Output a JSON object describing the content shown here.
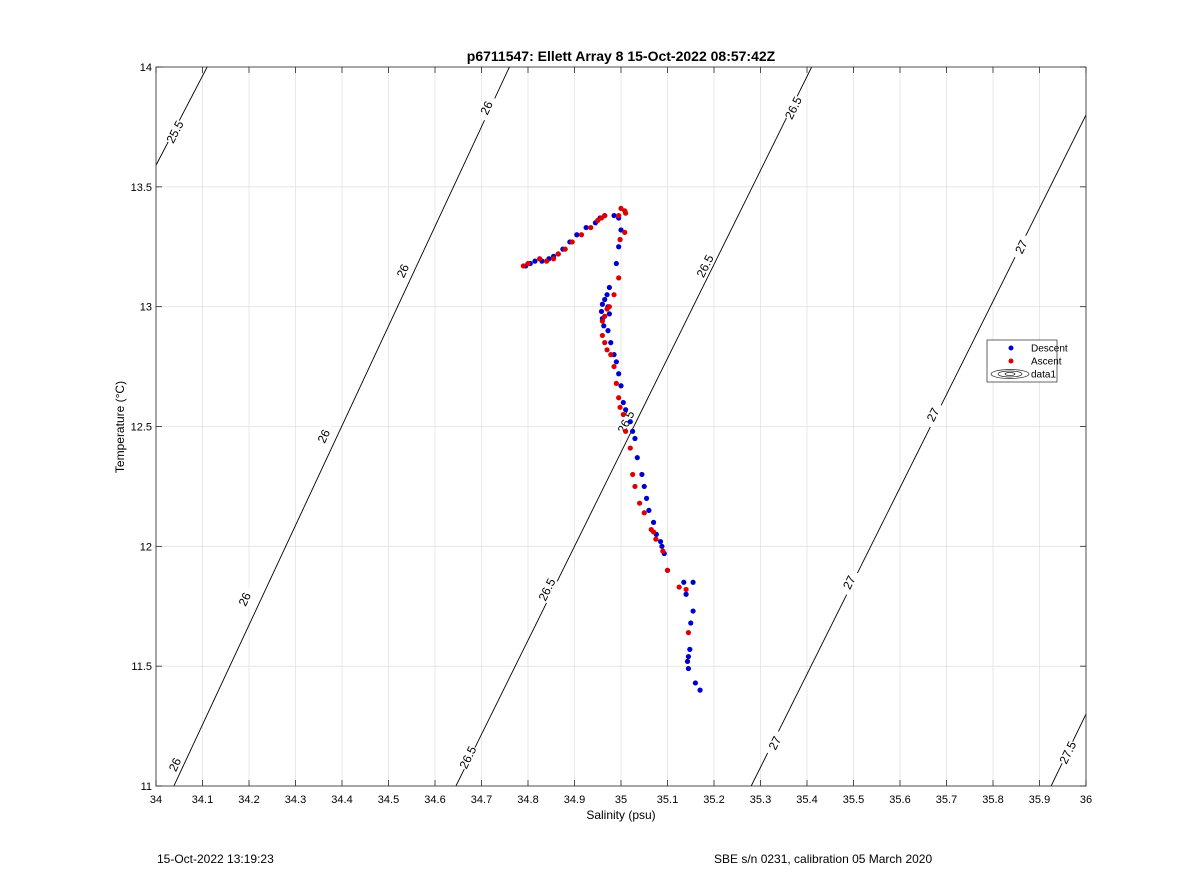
{
  "chart_data": {
    "type": "scatter",
    "title": "p6711547: Ellett Array 8 15-Oct-2022 08:57:42Z",
    "xlabel": "Salinity (psu)",
    "ylabel": "Temperature (°C)",
    "xlim": [
      34,
      36
    ],
    "ylim": [
      11,
      14
    ],
    "xticks": [
      34,
      34.1,
      34.2,
      34.3,
      34.4,
      34.5,
      34.6,
      34.7,
      34.8,
      34.9,
      35,
      35.1,
      35.2,
      35.3,
      35.4,
      35.5,
      35.6,
      35.7,
      35.8,
      35.9,
      36
    ],
    "xtick_labels": [
      "34",
      "34.1",
      "34.2",
      "34.3",
      "34.4",
      "34.5",
      "34.6",
      "34.7",
      "34.8",
      "34.9",
      "35",
      "35.1",
      "35.2",
      "35.3",
      "35.4",
      "35.5",
      "35.6",
      "35.7",
      "35.8",
      "35.9",
      "36"
    ],
    "yticks": [
      11,
      11.5,
      12,
      12.5,
      13,
      13.5,
      14
    ],
    "ytick_labels": [
      "11",
      "11.5",
      "12",
      "12.5",
      "13",
      "13.5",
      "14"
    ],
    "grid": true,
    "legend": {
      "placement": "right",
      "entries": [
        {
          "label": "Descent",
          "color": "#0000cc",
          "marker": "dot"
        },
        {
          "label": "Ascent",
          "color": "#dd0000",
          "marker": "dot"
        },
        {
          "label": "data1",
          "color": "#000000",
          "marker": "contour"
        }
      ]
    },
    "isopycnals": [
      {
        "label": "25.5",
        "points": [
          [
            34,
            13.59
          ],
          [
            34.11,
            14
          ]
        ],
        "label_positions": [
          [
            34.04,
            13.73
          ]
        ]
      },
      {
        "label": "26",
        "points": [
          [
            34,
            10.84
          ],
          [
            34.76,
            14
          ]
        ],
        "label_positions": [
          [
            34.04,
            11.09
          ],
          [
            34.19,
            11.78
          ],
          [
            34.36,
            12.46
          ],
          [
            34.53,
            13.15
          ],
          [
            34.71,
            13.83
          ]
        ]
      },
      {
        "label": "26.5",
        "points": [
          [
            34.645,
            11
          ],
          [
            35.41,
            14
          ]
        ],
        "label_positions": [
          [
            34.67,
            11.12
          ],
          [
            34.84,
            11.82
          ],
          [
            35.01,
            12.52
          ],
          [
            35.18,
            13.17
          ],
          [
            35.37,
            13.83
          ]
        ]
      },
      {
        "label": "27",
        "points": [
          [
            35.28,
            11
          ],
          [
            36,
            13.8
          ]
        ],
        "label_positions": [
          [
            35.33,
            11.18
          ],
          [
            35.49,
            11.85
          ],
          [
            35.67,
            12.55
          ],
          [
            35.86,
            13.25
          ]
        ]
      },
      {
        "label": "27.5",
        "points": [
          [
            35.925,
            11
          ],
          [
            36,
            11.3
          ]
        ],
        "label_positions": [
          [
            35.96,
            11.14
          ]
        ]
      }
    ],
    "series": [
      {
        "name": "Descent",
        "color": "#0000cc",
        "x": [
          35.17,
          35.16,
          35.145,
          35.143,
          35.145,
          35.148,
          35.15,
          35.155,
          35.155,
          35.14,
          35.135,
          35.1,
          35.093,
          35.088,
          35.085,
          35.076,
          35.07,
          35.06,
          35.055,
          35.05,
          35.045,
          35.035,
          35.03,
          35.025,
          35.02,
          35.01,
          35.005,
          35.0,
          34.995,
          34.99,
          34.985,
          34.978,
          34.972,
          34.963,
          34.96,
          34.958,
          34.96,
          34.965,
          34.97,
          34.975,
          34.975,
          34.972,
          34.99,
          34.995,
          34.998,
          35.0,
          34.995,
          34.985,
          34.965,
          34.955,
          34.945,
          34.925,
          34.905,
          34.89,
          34.875,
          34.865,
          34.855,
          34.845,
          34.83,
          34.815,
          34.805,
          34.795
        ],
        "y": [
          11.4,
          11.43,
          11.49,
          11.52,
          11.54,
          11.57,
          11.68,
          11.73,
          11.85,
          11.8,
          11.85,
          11.9,
          11.97,
          12.0,
          12.02,
          12.05,
          12.1,
          12.15,
          12.2,
          12.25,
          12.3,
          12.37,
          12.45,
          12.48,
          12.52,
          12.57,
          12.6,
          12.67,
          12.72,
          12.77,
          12.8,
          12.85,
          12.9,
          12.92,
          12.95,
          12.98,
          13.01,
          13.03,
          13.05,
          13.08,
          12.97,
          13.0,
          13.18,
          13.25,
          13.28,
          13.32,
          13.37,
          13.38,
          13.38,
          13.37,
          13.35,
          13.33,
          13.3,
          13.27,
          13.24,
          13.22,
          13.21,
          13.2,
          13.19,
          13.19,
          13.18,
          13.17
        ]
      },
      {
        "name": "Ascent",
        "color": "#dd0000",
        "x": [
          35.145,
          35.14,
          35.125,
          35.1,
          35.09,
          35.075,
          35.07,
          35.065,
          35.05,
          35.04,
          35.03,
          35.025,
          35.02,
          35.01,
          35.005,
          34.998,
          34.995,
          34.99,
          34.985,
          34.978,
          34.97,
          34.965,
          34.96,
          34.96,
          34.965,
          34.97,
          34.975,
          34.985,
          34.995,
          34.998,
          35.008,
          35.01,
          35.008,
          35.0,
          34.995,
          34.965,
          34.958,
          34.95,
          34.935,
          34.915,
          34.895,
          34.88,
          34.865,
          34.855,
          34.84,
          34.825,
          34.8,
          34.79
        ],
        "y": [
          11.64,
          11.82,
          11.83,
          11.9,
          11.98,
          12.03,
          12.06,
          12.07,
          12.14,
          12.18,
          12.25,
          12.3,
          12.41,
          12.48,
          12.55,
          12.58,
          12.62,
          12.68,
          12.75,
          12.8,
          12.82,
          12.85,
          12.88,
          12.94,
          12.96,
          12.99,
          13.0,
          13.05,
          13.12,
          13.28,
          13.31,
          13.39,
          13.4,
          13.41,
          13.38,
          13.38,
          13.37,
          13.36,
          13.33,
          13.3,
          13.27,
          13.24,
          13.22,
          13.2,
          13.19,
          13.2,
          13.18,
          13.17
        ]
      }
    ]
  },
  "footer": {
    "timestamp": "15-Oct-2022 13:19:23",
    "calibration": "SBE s/n 0231, calibration 05 March 2020"
  }
}
